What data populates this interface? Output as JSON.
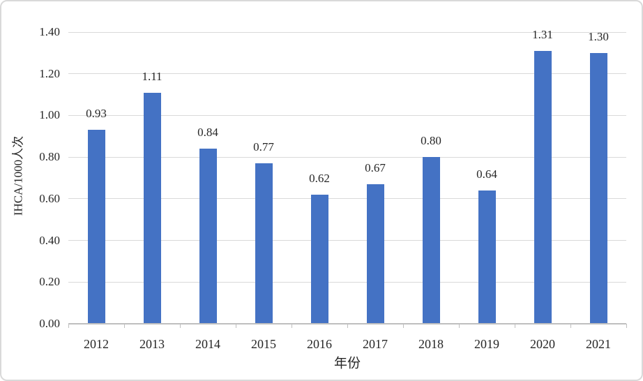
{
  "chart_data": {
    "type": "bar",
    "title": "",
    "xlabel": "年份",
    "ylabel": "IHCA/1000人次",
    "categories": [
      "2012",
      "2013",
      "2014",
      "2015",
      "2016",
      "2017",
      "2018",
      "2019",
      "2020",
      "2021"
    ],
    "values": [
      0.93,
      1.11,
      0.84,
      0.77,
      0.62,
      0.67,
      0.8,
      0.64,
      1.31,
      1.3
    ],
    "data_labels": [
      "0.93",
      "1.11",
      "0.84",
      "0.77",
      "0.62",
      "0.67",
      "0.80",
      "0.64",
      "1.31",
      "1.30"
    ],
    "ytick_labels": [
      "0.00",
      "0.20",
      "0.40",
      "0.60",
      "0.80",
      "1.00",
      "1.20",
      "1.40"
    ],
    "ylim": [
      0,
      1.4
    ],
    "ytick_step": 0.2,
    "grid": "horizontal",
    "legend": "none",
    "colors": {
      "bar": "#4472c4",
      "gridline": "#d9d9d9",
      "axis_line": "#bfbfbf",
      "text": "#262626",
      "chart_border": "#d9d9d9",
      "background": "#ffffff"
    }
  }
}
